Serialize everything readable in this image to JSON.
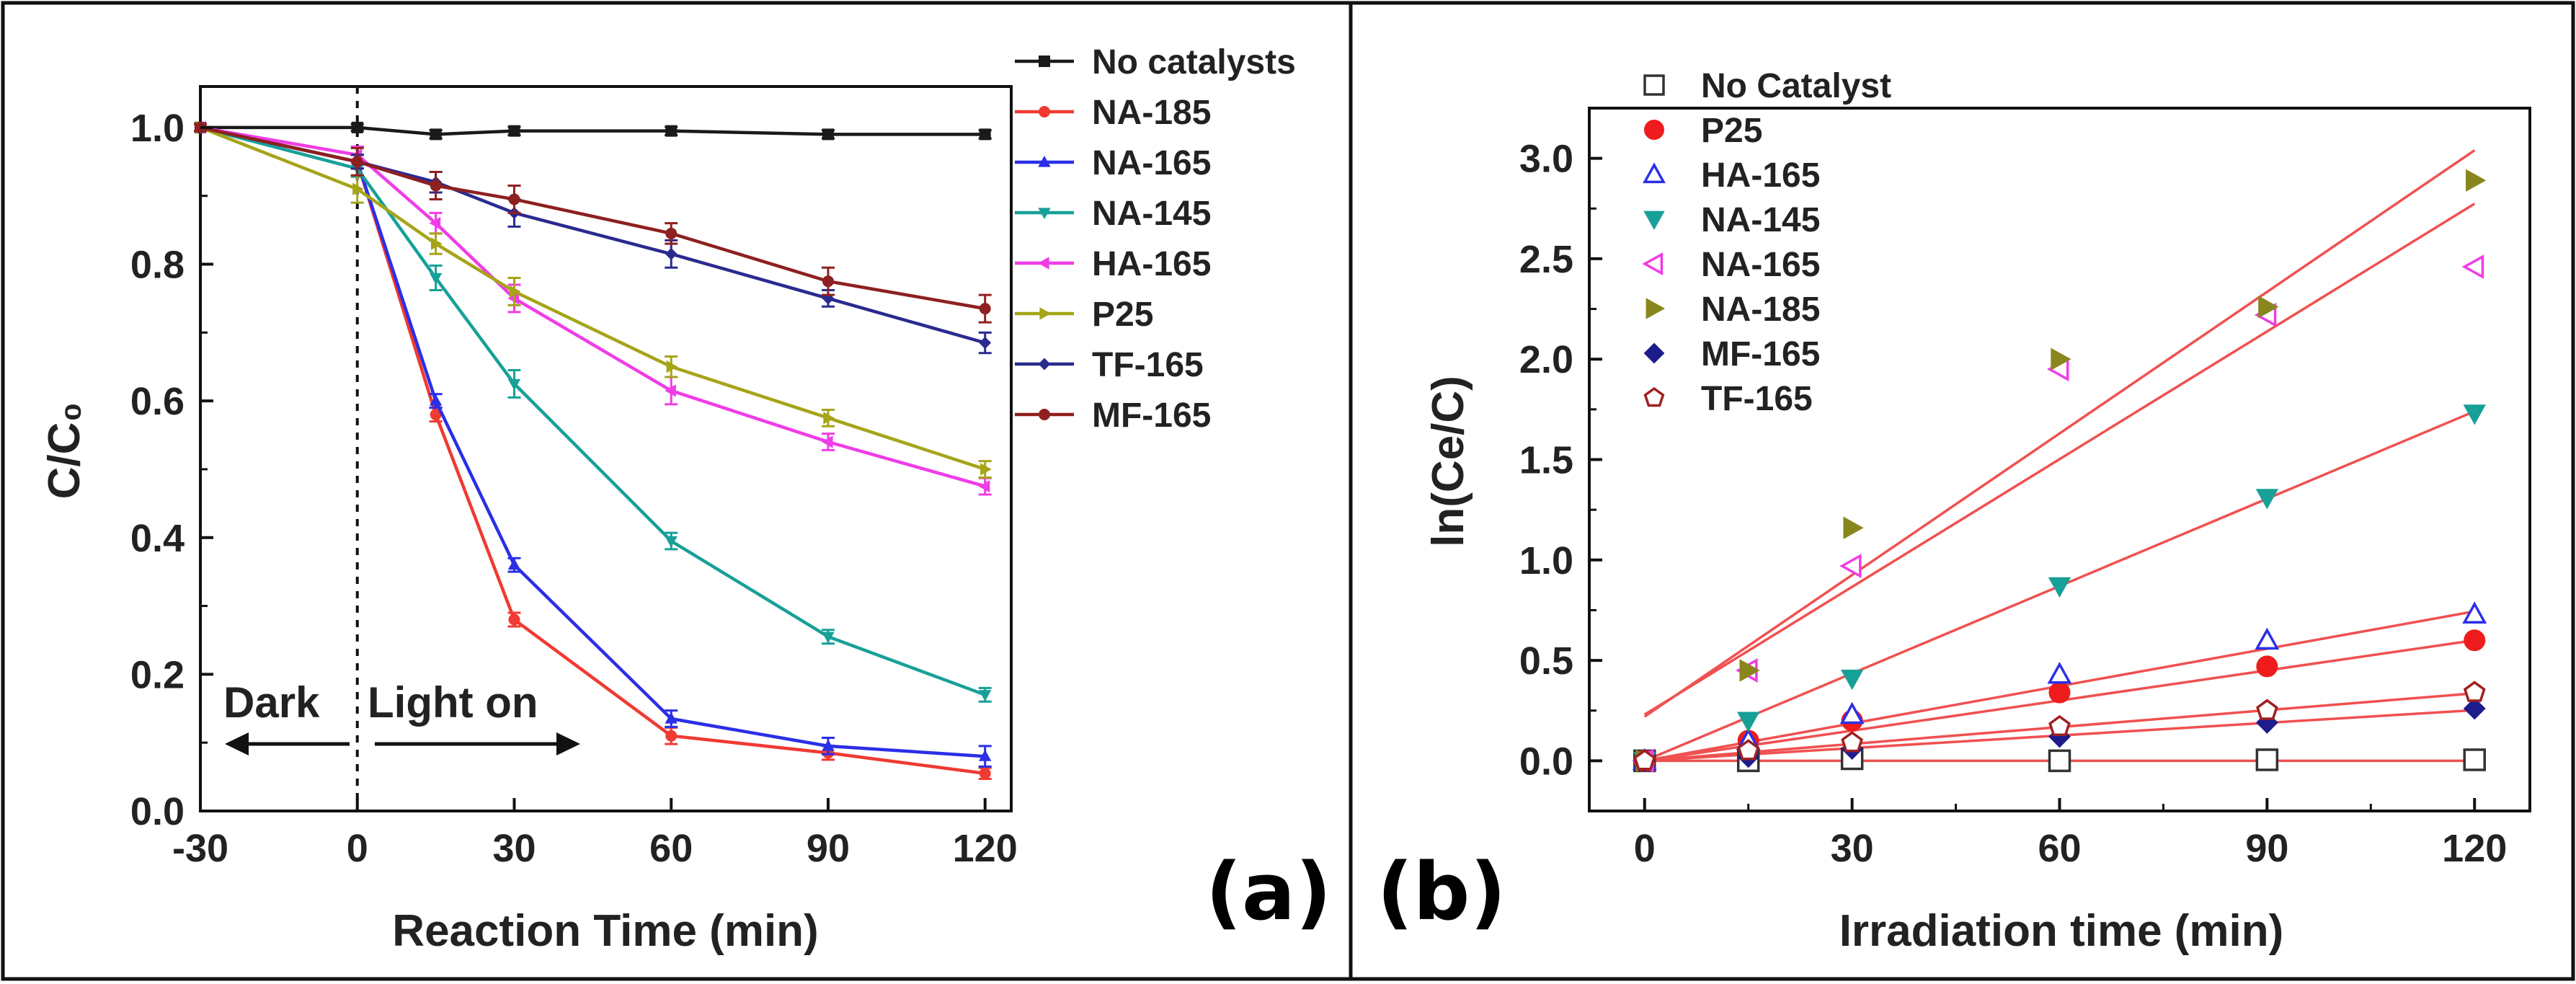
{
  "chart_data": [
    {
      "type": "line",
      "panel_label": "(a)",
      "xlabel": "Reaction Time (min)",
      "ylabel": "C/C₀",
      "xlim": [
        -30,
        125
      ],
      "ylim": [
        0,
        1.06
      ],
      "xticks": [
        "-30",
        "0",
        "30",
        "60",
        "90",
        "120"
      ],
      "yticks": [
        "0.0",
        "0.2",
        "0.4",
        "0.6",
        "0.8",
        "1.0"
      ],
      "x": [
        -30,
        0,
        15,
        30,
        60,
        90,
        120
      ],
      "annotations": [
        "Dark",
        "Light on"
      ],
      "legend_position": "top-right",
      "series": [
        {
          "name": "No catalysts",
          "color": "#1a1a1a",
          "marker": "square",
          "values": [
            1.0,
            1.0,
            0.99,
            0.995,
            0.995,
            0.99,
            0.99
          ],
          "errors": [
            0.005,
            0.005,
            0.006,
            0.006,
            0.006,
            0.006,
            0.006
          ]
        },
        {
          "name": "NA-185",
          "color": "#f03a32",
          "marker": "circle",
          "values": [
            1.0,
            0.95,
            0.58,
            0.28,
            0.11,
            0.085,
            0.055
          ],
          "errors": [
            0.005,
            0.01,
            0.01,
            0.01,
            0.012,
            0.01,
            0.008
          ]
        },
        {
          "name": "NA-165",
          "color": "#2b2fe6",
          "marker": "triangle-up",
          "values": [
            1.0,
            0.95,
            0.6,
            0.36,
            0.135,
            0.095,
            0.08
          ],
          "errors": [
            0.005,
            0.01,
            0.01,
            0.01,
            0.012,
            0.012,
            0.015
          ]
        },
        {
          "name": "NA-145",
          "color": "#17a098",
          "marker": "triangle-down",
          "values": [
            1.0,
            0.94,
            0.78,
            0.625,
            0.395,
            0.255,
            0.17
          ],
          "errors": [
            0.005,
            0.012,
            0.018,
            0.02,
            0.012,
            0.01,
            0.01
          ]
        },
        {
          "name": "HA-165",
          "color": "#f03ce6",
          "marker": "triangle-left",
          "values": [
            1.0,
            0.96,
            0.86,
            0.75,
            0.615,
            0.54,
            0.475
          ],
          "errors": [
            0.005,
            0.012,
            0.015,
            0.02,
            0.02,
            0.012,
            0.012
          ]
        },
        {
          "name": "P25",
          "color": "#a6a419",
          "marker": "triangle-right",
          "values": [
            1.0,
            0.91,
            0.83,
            0.76,
            0.65,
            0.575,
            0.5
          ],
          "errors": [
            0.005,
            0.02,
            0.015,
            0.02,
            0.015,
            0.012,
            0.012
          ]
        },
        {
          "name": "TF-165",
          "color": "#2a2a8f",
          "marker": "diamond",
          "values": [
            1.0,
            0.95,
            0.92,
            0.875,
            0.815,
            0.75,
            0.685
          ],
          "errors": [
            0.005,
            0.01,
            0.015,
            0.02,
            0.02,
            0.012,
            0.015
          ]
        },
        {
          "name": "MF-165",
          "color": "#8e2020",
          "marker": "circle",
          "values": [
            1.0,
            0.95,
            0.915,
            0.895,
            0.845,
            0.775,
            0.735
          ],
          "errors": [
            0.005,
            0.02,
            0.02,
            0.02,
            0.015,
            0.02,
            0.02
          ]
        }
      ]
    },
    {
      "type": "scatter",
      "panel_label": "(b)",
      "xlabel": "Irradiation time (min)",
      "ylabel": "ln(Ce/C)",
      "xlim": [
        -8,
        128
      ],
      "ylim": [
        -0.25,
        3.25
      ],
      "xticks": [
        "0",
        "30",
        "60",
        "90",
        "120"
      ],
      "yticks": [
        "0.0",
        "0.5",
        "1.0",
        "1.5",
        "2.0",
        "2.5",
        "3.0"
      ],
      "x": [
        0,
        15,
        30,
        60,
        90,
        120
      ],
      "legend_position": "top-left",
      "fit_color": "#f05050",
      "series": [
        {
          "name": "No Catalyst",
          "color": "#333333",
          "marker": "square-open",
          "values": [
            0,
            0.0,
            0.01,
            0.0,
            0.005,
            0.005
          ]
        },
        {
          "name": "P25",
          "color": "#ee1c1c",
          "marker": "circle",
          "values": [
            0,
            0.1,
            0.2,
            0.34,
            0.47,
            0.6
          ]
        },
        {
          "name": "HA-165",
          "color": "#2b2fe6",
          "marker": "triangle-up-open",
          "values": [
            0,
            0.1,
            0.23,
            0.43,
            0.6,
            0.73
          ]
        },
        {
          "name": "NA-145",
          "color": "#17a098",
          "marker": "triangle-down",
          "values": [
            0,
            0.2,
            0.41,
            0.87,
            1.31,
            1.73
          ]
        },
        {
          "name": "NA-165",
          "color": "#f03ce6",
          "marker": "triangle-left-open",
          "values": [
            0,
            0.45,
            0.97,
            1.95,
            2.22,
            2.46
          ]
        },
        {
          "name": "NA-185",
          "color": "#8a861e",
          "marker": "triangle-right",
          "values": [
            0,
            0.45,
            1.16,
            2.0,
            2.26,
            2.89
          ]
        },
        {
          "name": "MF-165",
          "color": "#1c1c8c",
          "marker": "diamond",
          "values": [
            0,
            0.02,
            0.06,
            0.12,
            0.19,
            0.26
          ]
        },
        {
          "name": "TF-165",
          "color": "#a02020",
          "marker": "pentagon-open",
          "values": [
            0,
            0.05,
            0.09,
            0.17,
            0.25,
            0.34
          ]
        }
      ],
      "fits": [
        {
          "name": "No Catalyst",
          "intercept": 0.0,
          "slope": 0.0
        },
        {
          "name": "MF-165",
          "intercept": 0.0,
          "slope": 0.0021
        },
        {
          "name": "TF-165",
          "intercept": 0.0,
          "slope": 0.0028
        },
        {
          "name": "P25",
          "intercept": 0.0,
          "slope": 0.005
        },
        {
          "name": "HA-165",
          "intercept": 0.0,
          "slope": 0.0062
        },
        {
          "name": "NA-145",
          "intercept": 0.0,
          "slope": 0.0145
        },
        {
          "name": "NA-165",
          "intercept": 0.23,
          "slope": 0.0212
        },
        {
          "name": "NA-185",
          "intercept": 0.22,
          "slope": 0.0235
        }
      ]
    }
  ]
}
